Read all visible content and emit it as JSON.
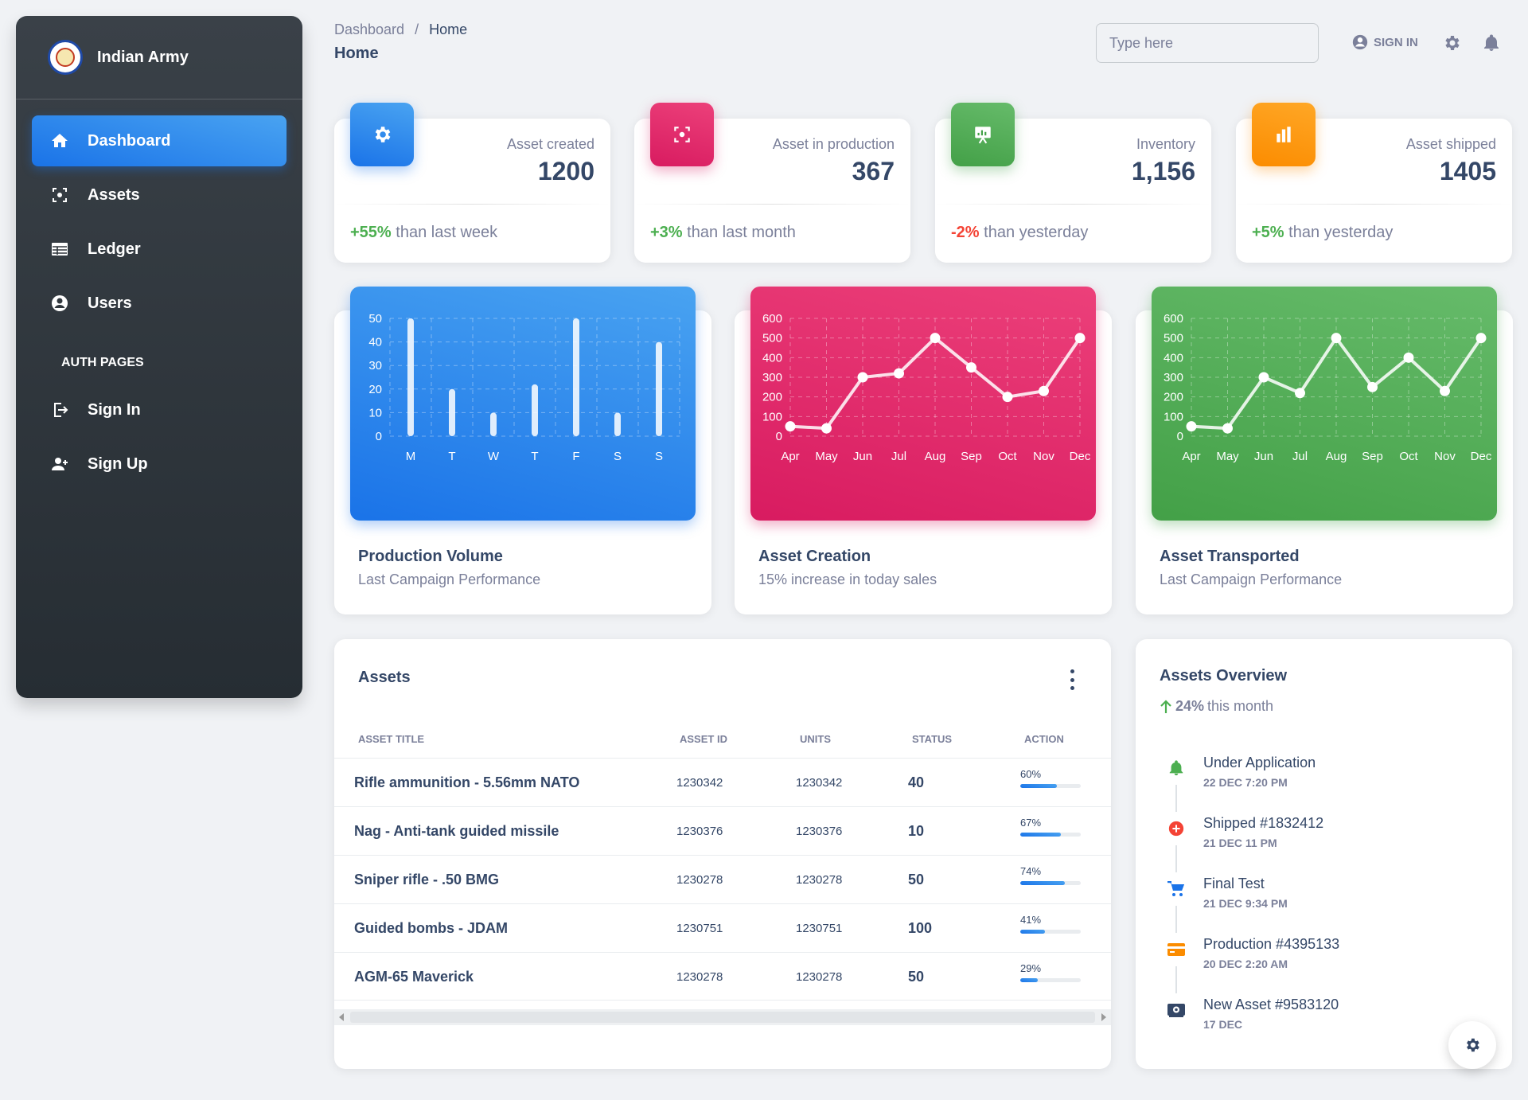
{
  "brand": {
    "name": "Indian Army"
  },
  "sidebar": {
    "items": [
      {
        "label": "Dashboard",
        "icon": "home-icon"
      },
      {
        "label": "Assets",
        "icon": "assets-icon"
      },
      {
        "label": "Ledger",
        "icon": "table-icon"
      },
      {
        "label": "Users",
        "icon": "user-circle-icon"
      }
    ],
    "section": "AUTH PAGES",
    "auth_items": [
      {
        "label": "Sign In",
        "icon": "login-icon"
      },
      {
        "label": "Sign Up",
        "icon": "person-add-icon"
      }
    ]
  },
  "header": {
    "breadcrumb_root": "Dashboard",
    "breadcrumb_sep": "/",
    "breadcrumb_current": "Home",
    "title": "Home",
    "search_placeholder": "Type here",
    "signin_label": "SIGN IN"
  },
  "stats": [
    {
      "label": "Asset created",
      "value": "1200",
      "change": "+55%",
      "change_text": "than last week",
      "color": "#1A73E8",
      "icon": "gear-icon"
    },
    {
      "label": "Asset in production",
      "value": "367",
      "change": "+3%",
      "change_text": "than last month",
      "color": "#D81B60",
      "icon": "target-icon"
    },
    {
      "label": "Inventory",
      "value": "1,156",
      "change": "-2%",
      "change_text": "than yesterday",
      "color": "#43A047",
      "icon": "presentation-icon"
    },
    {
      "label": "Asset shipped",
      "value": "1405",
      "change": "+5%",
      "change_text": "than yesterday",
      "color": "#FB8C00",
      "icon": "bar-chart-icon"
    }
  ],
  "charts": [
    {
      "title": "Production Volume",
      "subtitle": "Last Campaign Performance"
    },
    {
      "title": "Asset Creation",
      "subtitle": "15% increase in today sales"
    },
    {
      "title": "Asset Transported",
      "subtitle": "Last Campaign Performance"
    }
  ],
  "chart_data": [
    {
      "type": "bar",
      "categories": [
        "M",
        "T",
        "W",
        "T",
        "F",
        "S",
        "S"
      ],
      "values": [
        50,
        20,
        10,
        22,
        50,
        10,
        40
      ],
      "ylim": [
        0,
        50
      ],
      "yticks": [
        0,
        10,
        20,
        30,
        40,
        50
      ],
      "grid": true,
      "color": "#1A73E8"
    },
    {
      "type": "line",
      "categories": [
        "Apr",
        "May",
        "Jun",
        "Jul",
        "Aug",
        "Sep",
        "Oct",
        "Nov",
        "Dec"
      ],
      "values": [
        50,
        40,
        300,
        320,
        500,
        350,
        200,
        230,
        500
      ],
      "ylim": [
        0,
        600
      ],
      "yticks": [
        0,
        100,
        200,
        300,
        400,
        500,
        600
      ],
      "grid": true,
      "color": "#D81B60"
    },
    {
      "type": "line",
      "categories": [
        "Apr",
        "May",
        "Jun",
        "Jul",
        "Aug",
        "Sep",
        "Oct",
        "Nov",
        "Dec"
      ],
      "values": [
        50,
        40,
        300,
        220,
        500,
        250,
        400,
        230,
        500
      ],
      "ylim": [
        0,
        600
      ],
      "yticks": [
        0,
        100,
        200,
        300,
        400,
        500,
        600
      ],
      "grid": true,
      "color": "#43A047"
    }
  ],
  "assets": {
    "title": "Assets",
    "columns": [
      "ASSET TITLE",
      "ASSET ID",
      "UNITS",
      "STATUS",
      "ACTION"
    ],
    "rows": [
      {
        "title": "Rifle ammunition - 5.56mm NATO",
        "id": "1230342",
        "units": "1230342",
        "status": "40",
        "progress": 60,
        "progress_label": "60%"
      },
      {
        "title": "Nag - Anti-tank guided missile",
        "id": "1230376",
        "units": "1230376",
        "status": "10",
        "progress": 67,
        "progress_label": "67%"
      },
      {
        "title": "Sniper rifle - .50 BMG",
        "id": "1230278",
        "units": "1230278",
        "status": "50",
        "progress": 74,
        "progress_label": "74%"
      },
      {
        "title": "Guided bombs - JDAM",
        "id": "1230751",
        "units": "1230751",
        "status": "100",
        "progress": 41,
        "progress_label": "41%"
      },
      {
        "title": "AGM-65 Maverick",
        "id": "1230278",
        "units": "1230278",
        "status": "50",
        "progress": 29,
        "progress_label": "29%"
      }
    ]
  },
  "overview": {
    "title": "Assets Overview",
    "change": "24%",
    "change_text": "this month",
    "items": [
      {
        "title": "Under Application",
        "date": "22 DEC 7:20 PM",
        "icon": "bell-icon",
        "color": "#4caf50"
      },
      {
        "title": "Shipped #1832412",
        "date": "21 DEC 11 PM",
        "icon": "add-circle-icon",
        "color": "#f44335"
      },
      {
        "title": "Final Test",
        "date": "21 DEC 9:34 PM",
        "icon": "cart-icon",
        "color": "#1A73E8"
      },
      {
        "title": "Production #4395133",
        "date": "20 DEC 2:20 AM",
        "icon": "credit-card-icon",
        "color": "#fb8c00"
      },
      {
        "title": "New Asset #9583120",
        "date": "17 DEC",
        "icon": "key-icon",
        "color": "#344767"
      }
    ]
  }
}
